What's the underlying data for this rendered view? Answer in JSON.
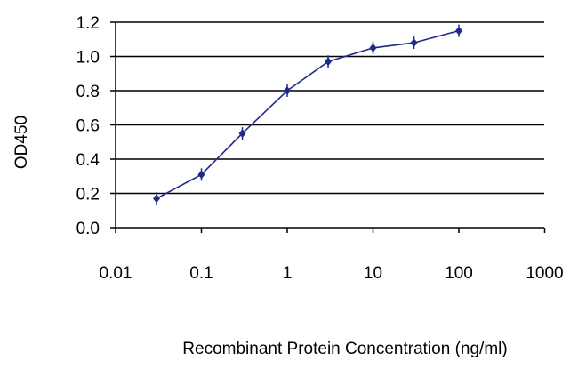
{
  "chart_data": {
    "type": "line",
    "title": "",
    "xlabel": "Recombinant Protein Concentration (ng/ml)",
    "ylabel": "OD450",
    "xscale": "log",
    "xlim": [
      0.01,
      1000
    ],
    "ylim": [
      0.0,
      1.2
    ],
    "x_ticks": [
      0.01,
      0.1,
      1,
      10,
      100,
      1000
    ],
    "x_tick_labels": [
      "0.01",
      "0.1",
      "1",
      "10",
      "100",
      "1000"
    ],
    "y_ticks": [
      0.0,
      0.2,
      0.4,
      0.6,
      0.8,
      1.0,
      1.2
    ],
    "y_tick_labels": [
      "0.0",
      "0.2",
      "0.4",
      "0.6",
      "0.8",
      "1.0",
      "1.2"
    ],
    "grid": "horizontal",
    "legend": "none",
    "colors": {
      "series": "#1f2a8c",
      "grid": "#000000",
      "background": "#ffffff"
    },
    "series": [
      {
        "marker": "diamond",
        "x": [
          0.03,
          0.1,
          0.3,
          1,
          3,
          10,
          30,
          100
        ],
        "y": [
          0.17,
          0.31,
          0.55,
          0.8,
          0.97,
          1.05,
          1.08,
          1.15
        ]
      }
    ]
  }
}
